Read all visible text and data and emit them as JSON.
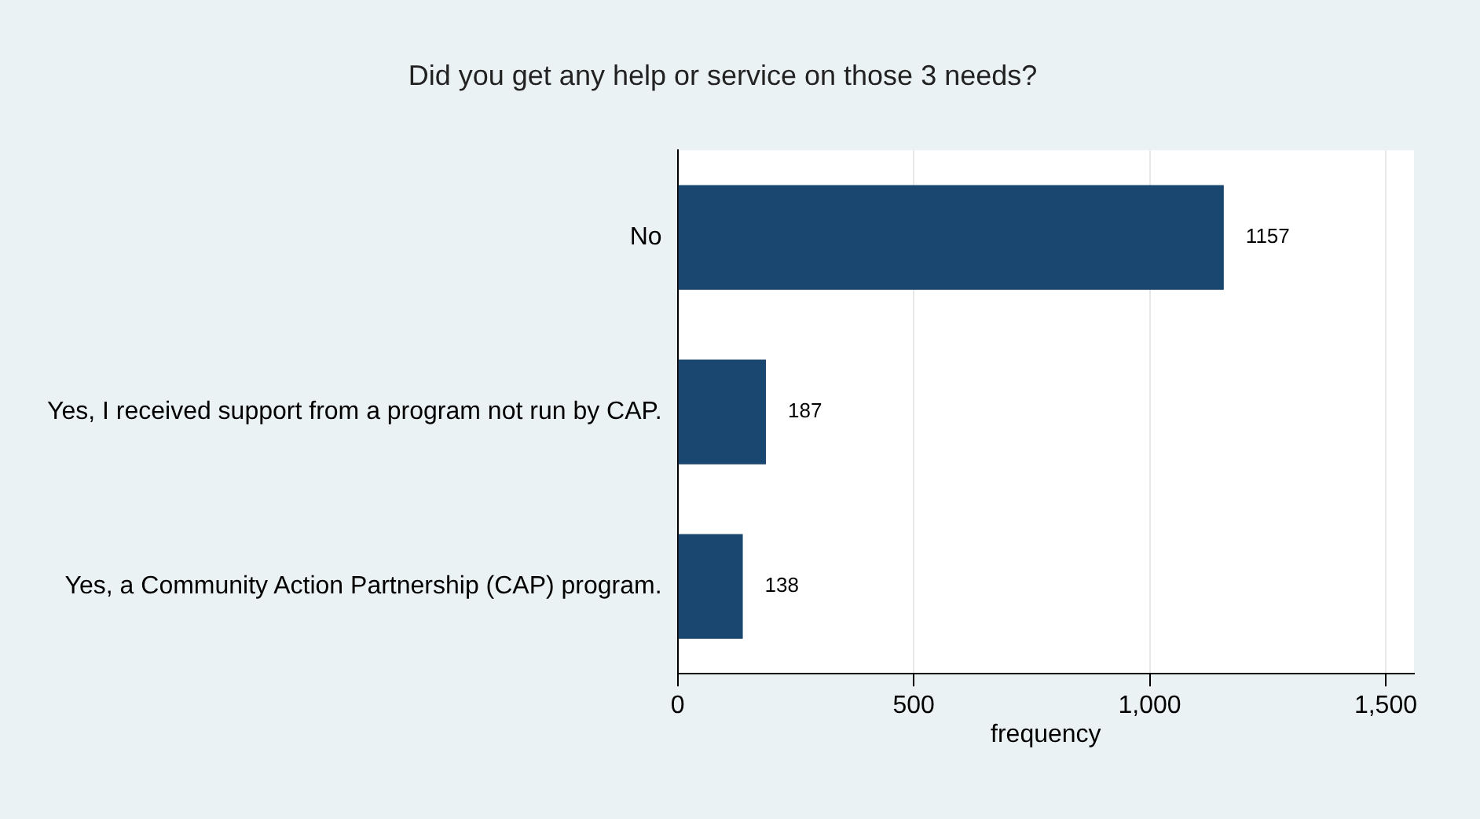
{
  "chart_data": {
    "type": "bar",
    "orientation": "horizontal",
    "title": "Did you get any help or service on those 3 needs?",
    "xlabel": "frequency",
    "categories": [
      "No",
      "Yes, I received support from a program not run by CAP.",
      "Yes, a Community Action Partnership (CAP) program."
    ],
    "values": [
      1157,
      187,
      138
    ],
    "color": "#1a476f",
    "xlim": [
      0,
      1560
    ],
    "xticks": [
      0,
      500,
      {
        "value": 1000,
        "label": "1,000"
      },
      {
        "value": 1500,
        "label": "1,500"
      }
    ],
    "grid": "x",
    "data_labels": true,
    "legend": false
  }
}
